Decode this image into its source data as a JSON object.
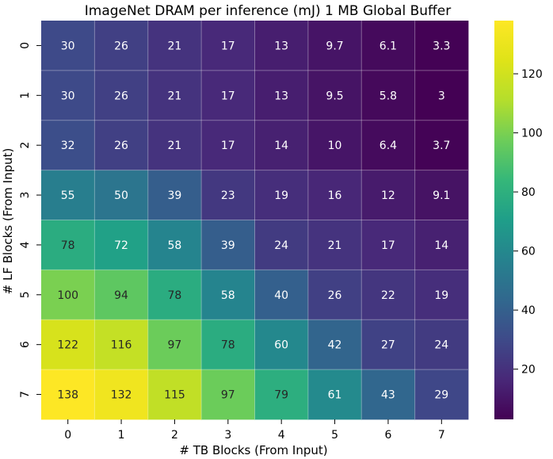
{
  "chart_data": {
    "type": "heatmap",
    "title": "ImageNet DRAM per inference (mJ) 1 MB Global Buffer",
    "xlabel": "# TB Blocks (From Input)",
    "ylabel": "# LF Blocks (From Input)",
    "x_ticks": [
      "0",
      "1",
      "2",
      "3",
      "4",
      "5",
      "6",
      "7"
    ],
    "y_ticks": [
      "0",
      "1",
      "2",
      "3",
      "4",
      "5",
      "6",
      "7"
    ],
    "values": [
      [
        30,
        26,
        21,
        17,
        13,
        9.7,
        6.1,
        3.3
      ],
      [
        30,
        26,
        21,
        17,
        13,
        9.5,
        5.8,
        3
      ],
      [
        32,
        26,
        21,
        17,
        14,
        10,
        6.4,
        3.7
      ],
      [
        55,
        50,
        39,
        23,
        19,
        16,
        12,
        9.1
      ],
      [
        78,
        72,
        58,
        39,
        24,
        21,
        17,
        14
      ],
      [
        100,
        94,
        78,
        58,
        40,
        26,
        22,
        19
      ],
      [
        122,
        116,
        97,
        78,
        60,
        42,
        27,
        24
      ],
      [
        138,
        132,
        115,
        97,
        79,
        61,
        43,
        29
      ]
    ],
    "colormap": "viridis",
    "vmin": 3,
    "vmax": 138,
    "colorbar_ticks": [
      20,
      40,
      60,
      80,
      100,
      120
    ],
    "grid": true
  }
}
